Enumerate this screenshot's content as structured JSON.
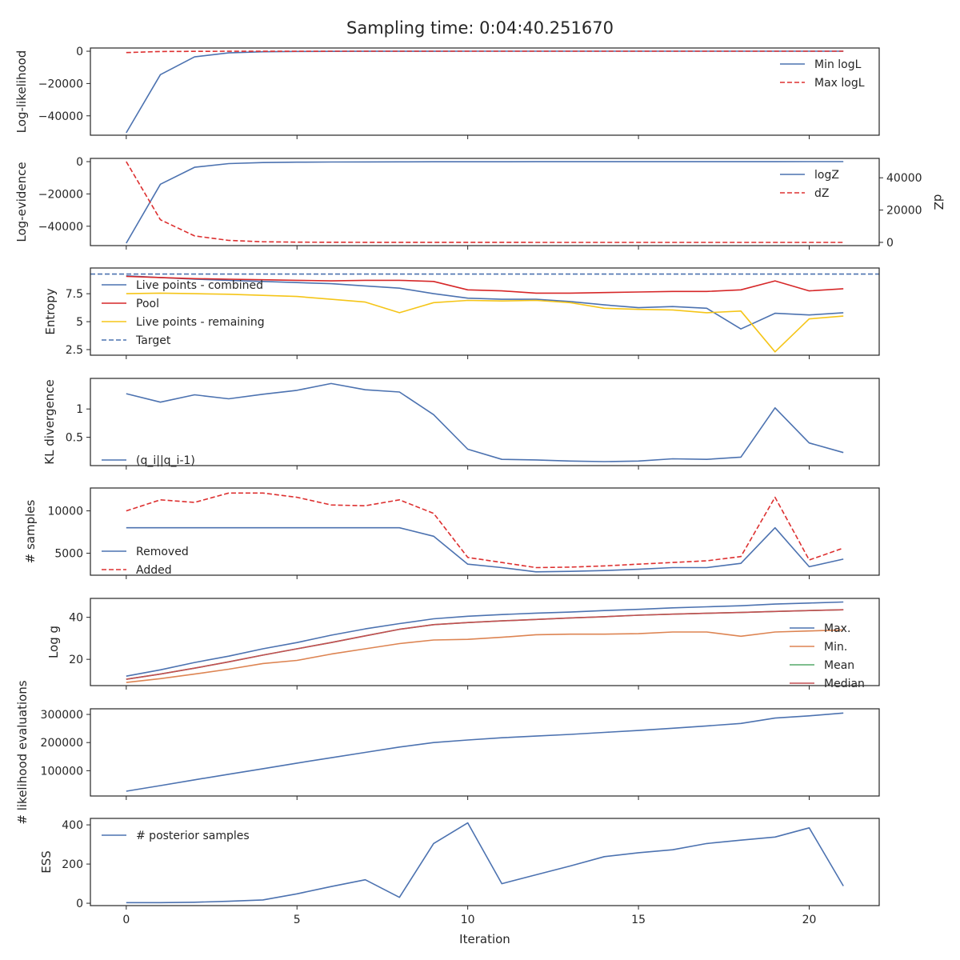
{
  "figure": {
    "title": "Sampling time: 0:04:40.251670",
    "xlabel": "Iteration"
  },
  "chart_data": [
    {
      "type": "line",
      "ylabel": "Log-likelihood",
      "ylim": [
        -52000,
        2000
      ],
      "yticks": [
        0,
        -20000,
        -40000
      ],
      "legend": "right",
      "series": [
        {
          "name": "Min logL",
          "color": "#4c72b0",
          "dash": false,
          "values": [
            -50500,
            -14500,
            -3500,
            -1000,
            -350,
            -150,
            -80,
            -40,
            -20,
            -10,
            -5,
            -3,
            -2,
            -1,
            -1,
            0,
            0,
            0,
            0,
            0,
            0,
            0
          ]
        },
        {
          "name": "Max logL",
          "color": "#dd3030",
          "dash": true,
          "values": [
            -800,
            -200,
            -100,
            -50,
            -20,
            -10,
            -5,
            -3,
            -2,
            -1,
            0,
            0,
            0,
            0,
            0,
            0,
            0,
            0,
            0,
            0,
            0,
            0
          ]
        }
      ]
    },
    {
      "type": "line",
      "ylabel": "Log-evidence",
      "ylim": [
        -52000,
        2000
      ],
      "yticks": [
        0,
        -20000,
        -40000
      ],
      "y2label": "dZ",
      "y2lim": [
        -2000,
        52000
      ],
      "y2ticks": [
        0,
        20000,
        40000
      ],
      "legend": "right",
      "series": [
        {
          "name": "logZ",
          "color": "#4c72b0",
          "dash": false,
          "axis": "left",
          "values": [
            -50500,
            -14000,
            -3500,
            -1200,
            -600,
            -350,
            -250,
            -180,
            -120,
            -100,
            -80,
            -60,
            -50,
            -40,
            -30,
            -25,
            -20,
            -15,
            -10,
            -8,
            -5,
            -3
          ]
        },
        {
          "name": "dZ",
          "color": "#dd3030",
          "dash": true,
          "axis": "right",
          "values": [
            50000,
            14000,
            4000,
            1200,
            400,
            150,
            60,
            30,
            20,
            15,
            10,
            8,
            5,
            5,
            4,
            3,
            2,
            2,
            2,
            1,
            1,
            1
          ]
        }
      ]
    },
    {
      "type": "line",
      "ylabel": "Entropy",
      "ylim": [
        2.0,
        9.8
      ],
      "yticks": [
        2.5,
        5.0,
        7.5
      ],
      "legend": "upper-left",
      "hline": {
        "name": "Target",
        "value": 9.26,
        "color": "#4c72b0"
      },
      "series": [
        {
          "name": "Live points - combined",
          "color": "#4c72b0",
          "dash": false,
          "values": [
            9.1,
            8.95,
            8.8,
            8.7,
            8.6,
            8.5,
            8.4,
            8.2,
            8.0,
            7.5,
            7.1,
            7.0,
            7.0,
            6.8,
            6.5,
            6.25,
            6.35,
            6.2,
            4.35,
            5.75,
            5.6,
            5.8
          ]
        },
        {
          "name": "Pool",
          "color": "#d62728",
          "dash": false,
          "values": [
            9.05,
            8.95,
            8.85,
            8.8,
            8.75,
            8.7,
            8.65,
            8.7,
            8.7,
            8.6,
            7.85,
            7.75,
            7.55,
            7.55,
            7.6,
            7.65,
            7.7,
            7.7,
            7.85,
            8.65,
            7.75,
            7.95
          ]
        },
        {
          "name": "Live points - remaining",
          "color": "#f5c518",
          "dash": false,
          "values": [
            7.5,
            7.55,
            7.5,
            7.45,
            7.35,
            7.25,
            7.0,
            6.75,
            5.8,
            6.7,
            6.9,
            6.85,
            6.9,
            6.7,
            6.2,
            6.1,
            6.05,
            5.8,
            5.95,
            2.3,
            5.25,
            5.5
          ]
        }
      ]
    },
    {
      "type": "line",
      "ylabel": "KL divergence",
      "ylim": [
        0.0,
        1.54
      ],
      "yticks": [
        0.5,
        1.0
      ],
      "legend": "lower-left",
      "series": [
        {
          "name": "(q_i||q_i-1)",
          "color": "#4c72b0",
          "dash": false,
          "values": [
            1.27,
            1.12,
            1.25,
            1.18,
            1.26,
            1.33,
            1.45,
            1.34,
            1.3,
            0.9,
            0.29,
            0.11,
            0.1,
            0.08,
            0.07,
            0.08,
            0.12,
            0.11,
            0.15,
            1.02,
            0.4,
            0.23
          ]
        }
      ]
    },
    {
      "type": "line",
      "ylabel": "# samples",
      "ylim": [
        2400,
        12700
      ],
      "yticks": [
        5000,
        10000
      ],
      "legend": "lower-left",
      "series": [
        {
          "name": "Removed",
          "color": "#4c72b0",
          "dash": false,
          "values": [
            8000,
            8000,
            8000,
            8000,
            8000,
            8000,
            8000,
            8000,
            8000,
            7000,
            3700,
            3300,
            2800,
            2850,
            2950,
            3100,
            3300,
            3300,
            3800,
            8000,
            3400,
            4300
          ]
        },
        {
          "name": "Added",
          "color": "#dd3030",
          "dash": true,
          "values": [
            10000,
            11300,
            11000,
            12100,
            12100,
            11600,
            10700,
            10600,
            11300,
            9700,
            4500,
            3900,
            3300,
            3350,
            3500,
            3700,
            3900,
            4100,
            4600,
            11600,
            4200,
            5600
          ]
        }
      ]
    },
    {
      "type": "line",
      "ylabel": "Log g",
      "ylim": [
        7.5,
        49
      ],
      "yticks": [
        20,
        40
      ],
      "legend": "lower-right",
      "series": [
        {
          "name": "Max.",
          "color": "#4c72b0",
          "dash": false,
          "values": [
            12,
            15,
            18.5,
            21.5,
            25,
            28,
            31.5,
            34.5,
            37,
            39.3,
            40.5,
            41.3,
            42,
            42.5,
            43.2,
            43.8,
            44.5,
            45,
            45.5,
            46.3,
            46.8,
            47.3
          ]
        },
        {
          "name": "Min.",
          "color": "#dd8452",
          "dash": false,
          "values": [
            9,
            10.8,
            13,
            15.3,
            18,
            19.5,
            22.5,
            25,
            27.5,
            29.2,
            29.5,
            30.5,
            31.7,
            32,
            32,
            32.2,
            33,
            33,
            31,
            33,
            33.5,
            34
          ]
        },
        {
          "name": "Mean",
          "color": "#55a868",
          "dash": false,
          "values": [
            10.5,
            13,
            15.8,
            18.8,
            22,
            25,
            28,
            31.2,
            34.3,
            36.5,
            37.5,
            38.3,
            39,
            39.7,
            40.3,
            41,
            41.5,
            41.9,
            42.3,
            42.8,
            43.2,
            43.6
          ]
        },
        {
          "name": "Median",
          "color": "#c44e52",
          "dash": false,
          "values": [
            10.5,
            13,
            15.8,
            18.8,
            22,
            25,
            28,
            31.2,
            34.3,
            36.5,
            37.5,
            38.3,
            39,
            39.7,
            40.3,
            41,
            41.5,
            41.9,
            42.3,
            42.8,
            43.2,
            43.6
          ]
        }
      ]
    },
    {
      "type": "line",
      "ylabel": "# likelihood evaluations",
      "ylim": [
        10000,
        320000
      ],
      "yticks": [
        100000,
        200000,
        300000
      ],
      "legend": "none",
      "series": [
        {
          "name": "",
          "color": "#4c72b0",
          "dash": false,
          "values": [
            27000,
            47000,
            67500,
            87500,
            107000,
            127000,
            146000,
            165000,
            184000,
            200000,
            209000,
            217000,
            223000,
            229000,
            236000,
            243000,
            251000,
            259000,
            268000,
            287000,
            295000,
            305000
          ]
        }
      ]
    },
    {
      "type": "line",
      "ylabel": "ESS",
      "ylim": [
        -12,
        433
      ],
      "yticks": [
        0,
        200,
        400
      ],
      "legend": "upper-left",
      "series": [
        {
          "name": "# posterior samples",
          "color": "#4c72b0",
          "dash": false,
          "values": [
            3,
            3,
            5,
            10,
            17,
            48,
            85,
            120,
            30,
            305,
            410,
            100,
            145,
            190,
            238,
            258,
            273,
            305,
            322,
            338,
            385,
            88
          ]
        }
      ]
    }
  ],
  "xaxis": {
    "range": [
      -1.05,
      22.05
    ],
    "ticks": [
      0,
      5,
      10,
      15,
      20
    ]
  }
}
